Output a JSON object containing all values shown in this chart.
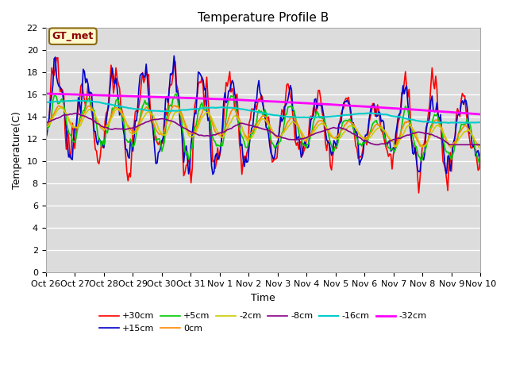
{
  "title": "Temperature Profile B",
  "xlabel": "Time",
  "ylabel": "Temperature(C)",
  "ylim": [
    0,
    22
  ],
  "yticks": [
    0,
    2,
    4,
    6,
    8,
    10,
    12,
    14,
    16,
    18,
    20,
    22
  ],
  "xtick_labels": [
    "Oct 26",
    "Oct 27",
    "Oct 28",
    "Oct 29",
    "Oct 30",
    "Oct 31",
    "Nov 1",
    "Nov 2",
    "Nov 3",
    "Nov 4",
    "Nov 5",
    "Nov 6",
    "Nov 7",
    "Nov 8",
    "Nov 9",
    "Nov 10"
  ],
  "annotation_text": "GT_met",
  "annotation_color": "#8B0000",
  "annotation_bg": "#FFFACD",
  "plot_bg": "#DCDCDC",
  "series_names": [
    "+30cm",
    "+15cm",
    "+5cm",
    "0cm",
    "-2cm",
    "-8cm",
    "-16cm",
    "-32cm"
  ],
  "series_colors": [
    "#FF0000",
    "#0000CC",
    "#00CC00",
    "#FF8800",
    "#CCCC00",
    "#880088",
    "#00CCCC",
    "#FF00FF"
  ],
  "series_lw": [
    1.2,
    1.2,
    1.2,
    1.2,
    1.2,
    1.2,
    1.5,
    2.0
  ],
  "legend_order": [
    "+30cm",
    "+15cm",
    "+5cm",
    "0cm",
    "-2cm",
    "-8cm",
    "-16cm",
    "-32cm"
  ],
  "title_fontsize": 11,
  "axis_fontsize": 9,
  "tick_fontsize": 8
}
